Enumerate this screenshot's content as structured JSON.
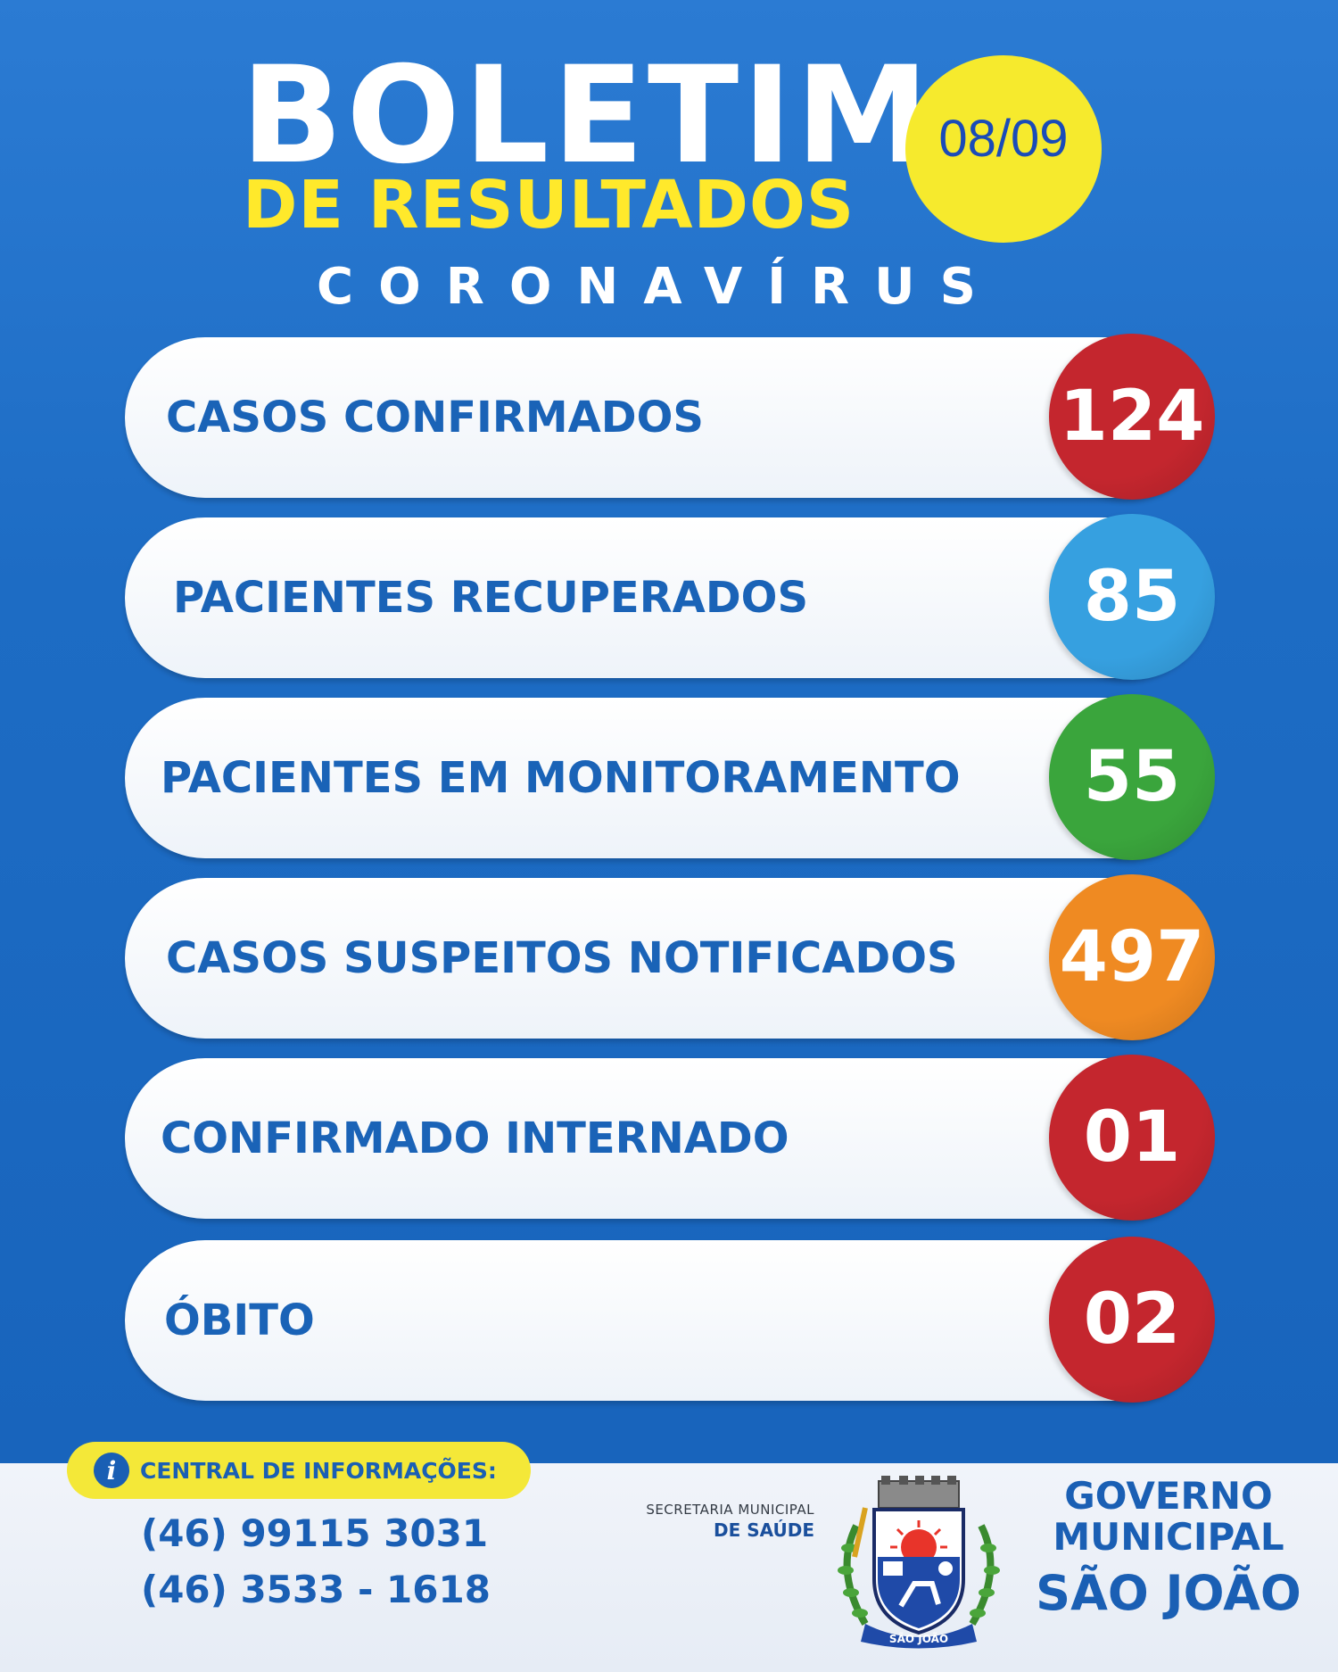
{
  "header": {
    "title": "BOLETIM",
    "subtitle": "DE RESULTADOS",
    "topic": "CORONAVÍRUS",
    "date": "08/09"
  },
  "stats": [
    {
      "label": "CASOS CONFIRMADOS",
      "value": "124",
      "color": "#c4262e"
    },
    {
      "label": "PACIENTES RECUPERADOS",
      "value": "85",
      "color": "#36a0e0"
    },
    {
      "label": "PACIENTES EM MONITORAMENTO",
      "value": "55",
      "color": "#3aa53c"
    },
    {
      "label": "CASOS SUSPEITOS NOTIFICADOS",
      "value": "497",
      "color": "#ef8a22"
    },
    {
      "label": "CONFIRMADO INTERNADO",
      "value": "01",
      "color": "#c4262e"
    },
    {
      "label": "ÓBITO",
      "value": "02",
      "color": "#c4262e"
    }
  ],
  "footer": {
    "info_label": "CENTRAL DE INFORMAÇÕES:",
    "info_icon": "info-icon",
    "phones": [
      "(46) 99115 3031",
      "(46) 3533 - 1618"
    ],
    "secretaria_line1": "SECRETARIA MUNICIPAL",
    "secretaria_line2": "DE SAÚDE",
    "gov_line1": "GOVERNO",
    "gov_line2": "MUNICIPAL",
    "gov_line3": "SÃO JOÃO",
    "crest_text": "SÃO JOÃO"
  },
  "colors": {
    "background": "#1f6fc7",
    "accent_yellow": "#f6ea2d",
    "label_blue": "#1a63b7"
  }
}
